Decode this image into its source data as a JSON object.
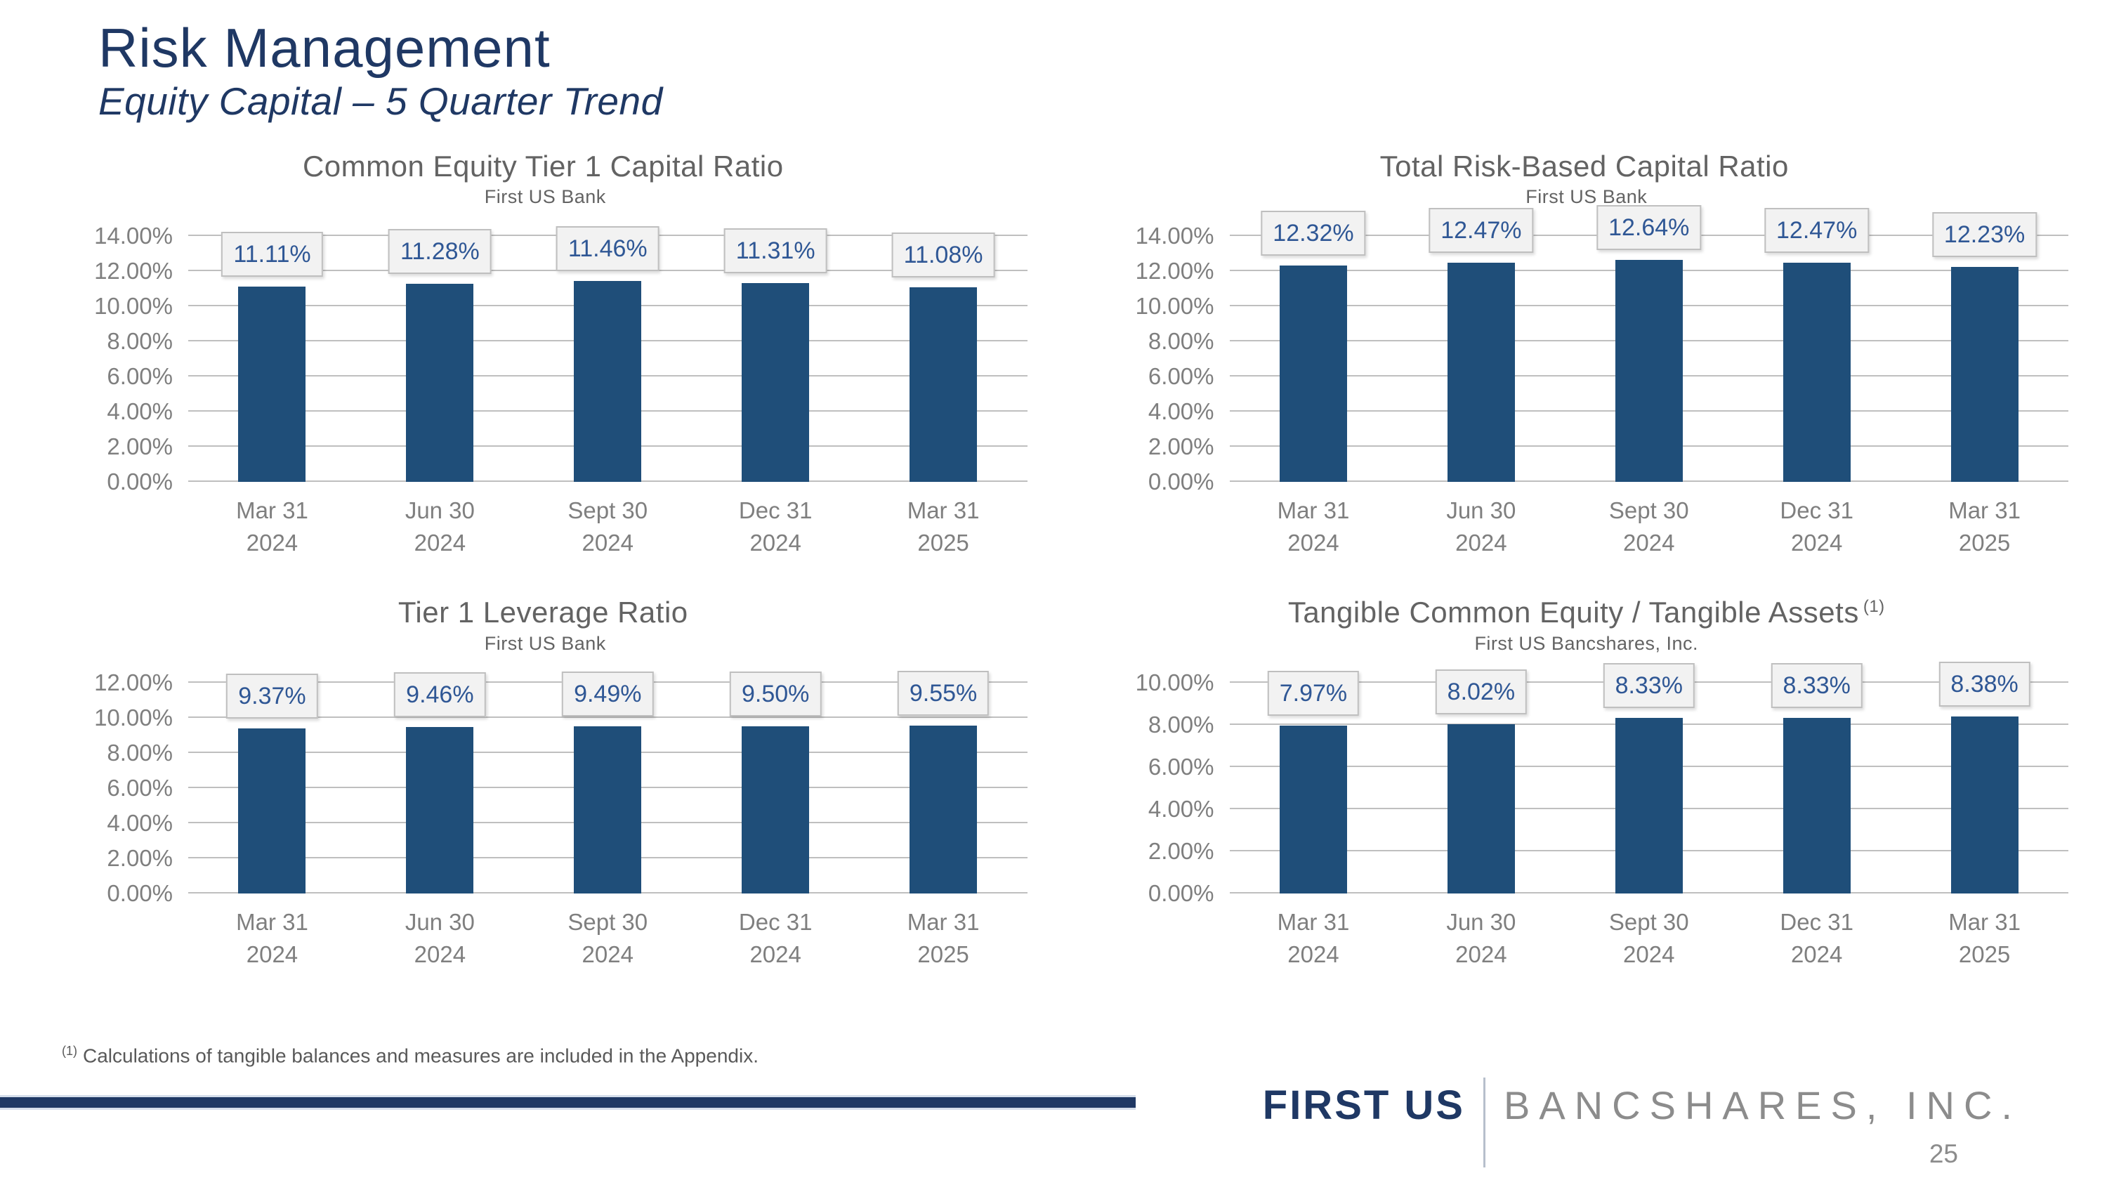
{
  "slide": {
    "title": "Risk Management",
    "subtitle": "Equity Capital – 5 Quarter Trend",
    "footnote": {
      "sup": "(1)",
      "text": "Calculations of tangible balances and measures are included in the Appendix."
    },
    "footer": {
      "brand_primary": "FIRST US",
      "brand_secondary": "BANCSHARES, INC.",
      "page_number": "25"
    }
  },
  "colors": {
    "navy": "#1F3864",
    "bar": "#1F4E79",
    "grid": "#BFBFBF",
    "axis_gray": "#7F7F7F",
    "title_gray": "#636363",
    "label_blue": "#2F5795",
    "label_box_bg": "#F2F2F2",
    "label_box_border": "#BFBFBF",
    "brand_gray": "#8C8C8C",
    "footnote_gray": "#595959"
  },
  "chart_data": [
    {
      "type": "bar",
      "title": "Common Equity Tier 1 Capital Ratio",
      "subtitle": "First US Bank",
      "categories": [
        "Mar 31\n2024",
        "Jun 30\n2024",
        "Sept 30\n2024",
        "Dec 31\n2024",
        "Mar 31\n2025"
      ],
      "values": [
        11.11,
        11.28,
        11.46,
        11.31,
        11.08
      ],
      "labels": [
        "11.11%",
        "11.28%",
        "11.46%",
        "11.31%",
        "11.08%"
      ],
      "ylim": [
        0,
        14
      ],
      "ystep": 2,
      "xlabel": "",
      "ylabel": "",
      "grid": true,
      "legend": "none"
    },
    {
      "type": "bar",
      "title": "Total Risk-Based Capital Ratio",
      "subtitle": "First US Bank",
      "categories": [
        "Mar 31\n2024",
        "Jun 30\n2024",
        "Sept 30\n2024",
        "Dec 31\n2024",
        "Mar 31\n2025"
      ],
      "values": [
        12.32,
        12.47,
        12.64,
        12.47,
        12.23
      ],
      "labels": [
        "12.32%",
        "12.47%",
        "12.64%",
        "12.47%",
        "12.23%"
      ],
      "ylim": [
        0,
        14
      ],
      "ystep": 2,
      "xlabel": "",
      "ylabel": "",
      "grid": true,
      "legend": "none"
    },
    {
      "type": "bar",
      "title": "Tier 1 Leverage Ratio",
      "subtitle": "First US Bank",
      "categories": [
        "Mar 31\n2024",
        "Jun 30\n2024",
        "Sept 30\n2024",
        "Dec 31\n2024",
        "Mar 31\n2025"
      ],
      "values": [
        9.37,
        9.46,
        9.49,
        9.5,
        9.55
      ],
      "labels": [
        "9.37%",
        "9.46%",
        "9.49%",
        "9.50%",
        "9.55%"
      ],
      "ylim": [
        0,
        12
      ],
      "ystep": 2,
      "xlabel": "",
      "ylabel": "",
      "grid": true,
      "legend": "none"
    },
    {
      "type": "bar",
      "title": "Tangible Common Equity / Tangible Assets",
      "title_sup": "(1)",
      "subtitle": "First US Bancshares, Inc.",
      "categories": [
        "Mar 31\n2024",
        "Jun 30\n2024",
        "Sept 30\n2024",
        "Dec 31\n2024",
        "Mar 31\n2025"
      ],
      "values": [
        7.97,
        8.02,
        8.33,
        8.33,
        8.38
      ],
      "labels": [
        "7.97%",
        "8.02%",
        "8.33%",
        "8.33%",
        "8.38%"
      ],
      "ylim": [
        0,
        10
      ],
      "ystep": 2,
      "xlabel": "",
      "ylabel": "",
      "grid": true,
      "legend": "none"
    }
  ]
}
